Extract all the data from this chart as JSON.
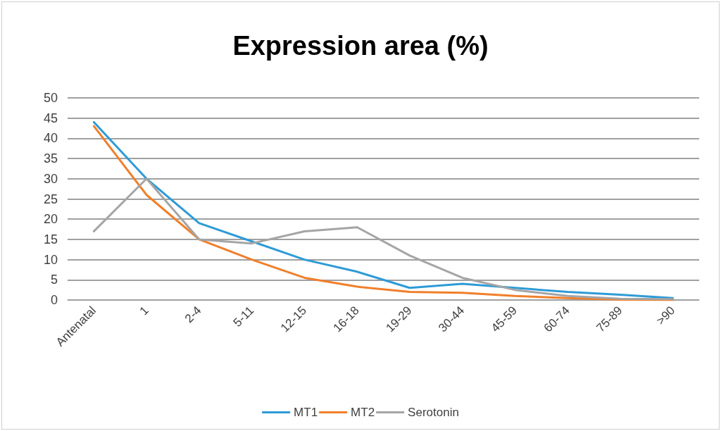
{
  "chart_data": {
    "type": "line",
    "title": "Expression area (%)",
    "categories": [
      "Antenatal",
      "1",
      "2-4",
      "5-11",
      "12-15",
      "16-18",
      "19-29",
      "30-44",
      "45-59",
      "60-74",
      "75-89",
      ">90"
    ],
    "series": [
      {
        "name": "MT1",
        "color": "#2e9bd6",
        "values": [
          44,
          30,
          19,
          14.5,
          10,
          7,
          3,
          4,
          3,
          2,
          1.3,
          0.5
        ]
      },
      {
        "name": "MT2",
        "color": "#f07f2a",
        "values": [
          43,
          26,
          15,
          10,
          5.5,
          3.3,
          2,
          1.8,
          1,
          0.5,
          0.1,
          0
        ]
      },
      {
        "name": "Serotonin",
        "color": "#a5a5a5",
        "values": [
          17,
          30,
          15,
          14,
          17,
          18,
          11,
          5.5,
          2.5,
          1,
          0.3,
          0.2
        ]
      }
    ],
    "ylim": [
      0,
      50
    ],
    "yticks": [
      0,
      5,
      10,
      15,
      20,
      25,
      30,
      35,
      40,
      45,
      50
    ],
    "grid": "y",
    "legend": "bottom",
    "marker": "none",
    "line_style": "solid"
  }
}
